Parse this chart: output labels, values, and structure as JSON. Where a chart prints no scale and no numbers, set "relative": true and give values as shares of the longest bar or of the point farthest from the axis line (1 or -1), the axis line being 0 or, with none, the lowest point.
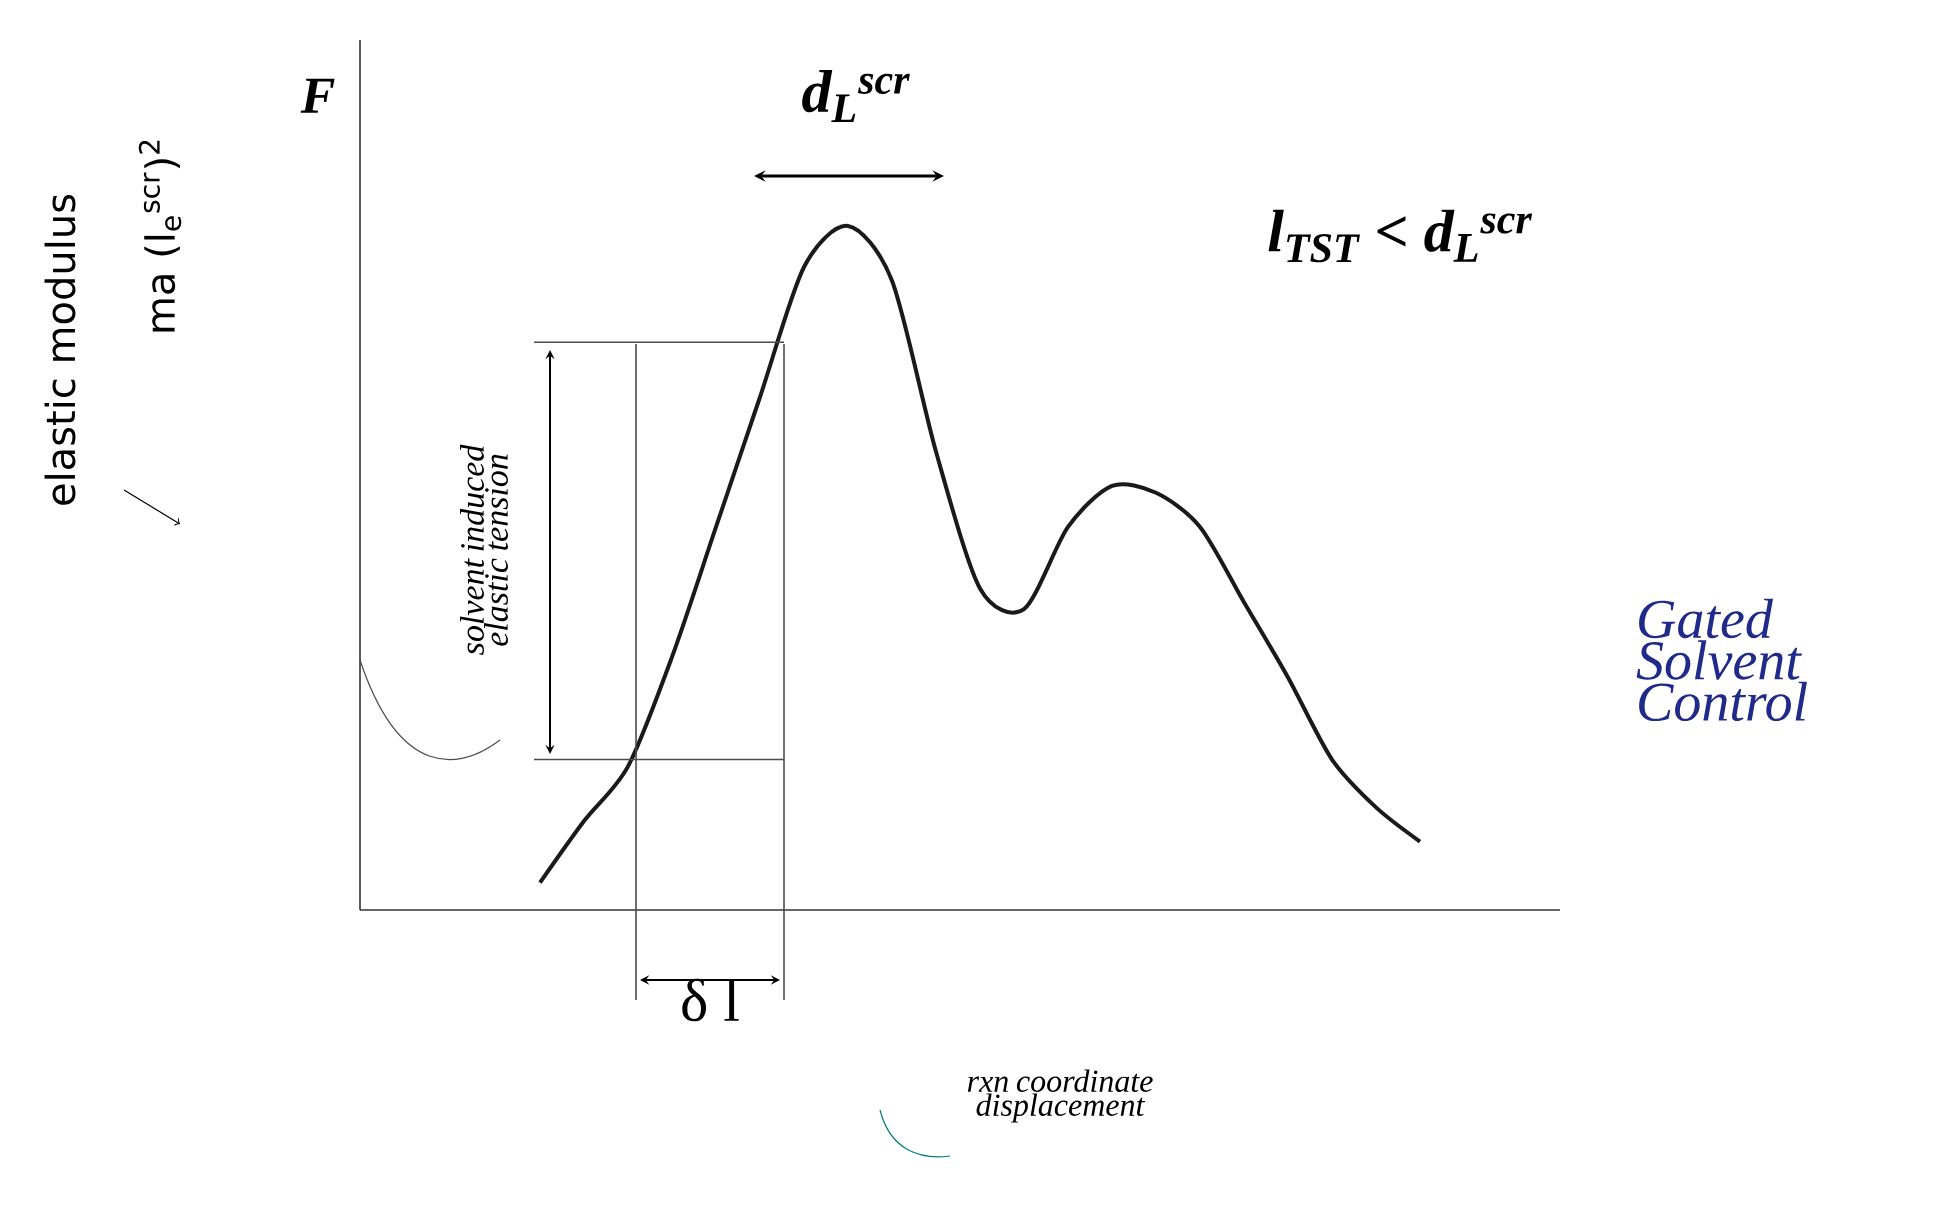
{
  "chart_data": {
    "type": "line",
    "relative": true,
    "ylabel": "F",
    "color": "#1a1a1a",
    "categories": [
      null,
      null,
      null,
      null,
      null,
      null,
      null,
      null,
      null,
      null,
      null,
      null,
      null,
      null,
      null,
      null,
      null,
      null,
      null,
      null,
      null
    ],
    "values": [
      0.04,
      0.13,
      0.21,
      0.37,
      0.56,
      0.75,
      0.94,
      1.0,
      0.92,
      0.67,
      0.47,
      0.44,
      0.56,
      0.62,
      0.61,
      0.56,
      0.45,
      0.34,
      0.22,
      0.15,
      0.1
    ],
    "ref_lines": [
      {
        "axis": "y",
        "value": 0.83
      },
      {
        "axis": "y",
        "value": 0.22
      }
    ],
    "annotations": [
      "d$_{L}$$^{scr}$",
      "l$_{TST}$ < d$_{L}$$^{scr}$",
      "Gated Solvent Control",
      "solvent induced elastic tension",
      "δ l",
      "rxn coordinate displacement",
      "elastic modulus",
      "ma (l$_{e}$$^{scr}$)$^{2}$"
    ]
  }
}
